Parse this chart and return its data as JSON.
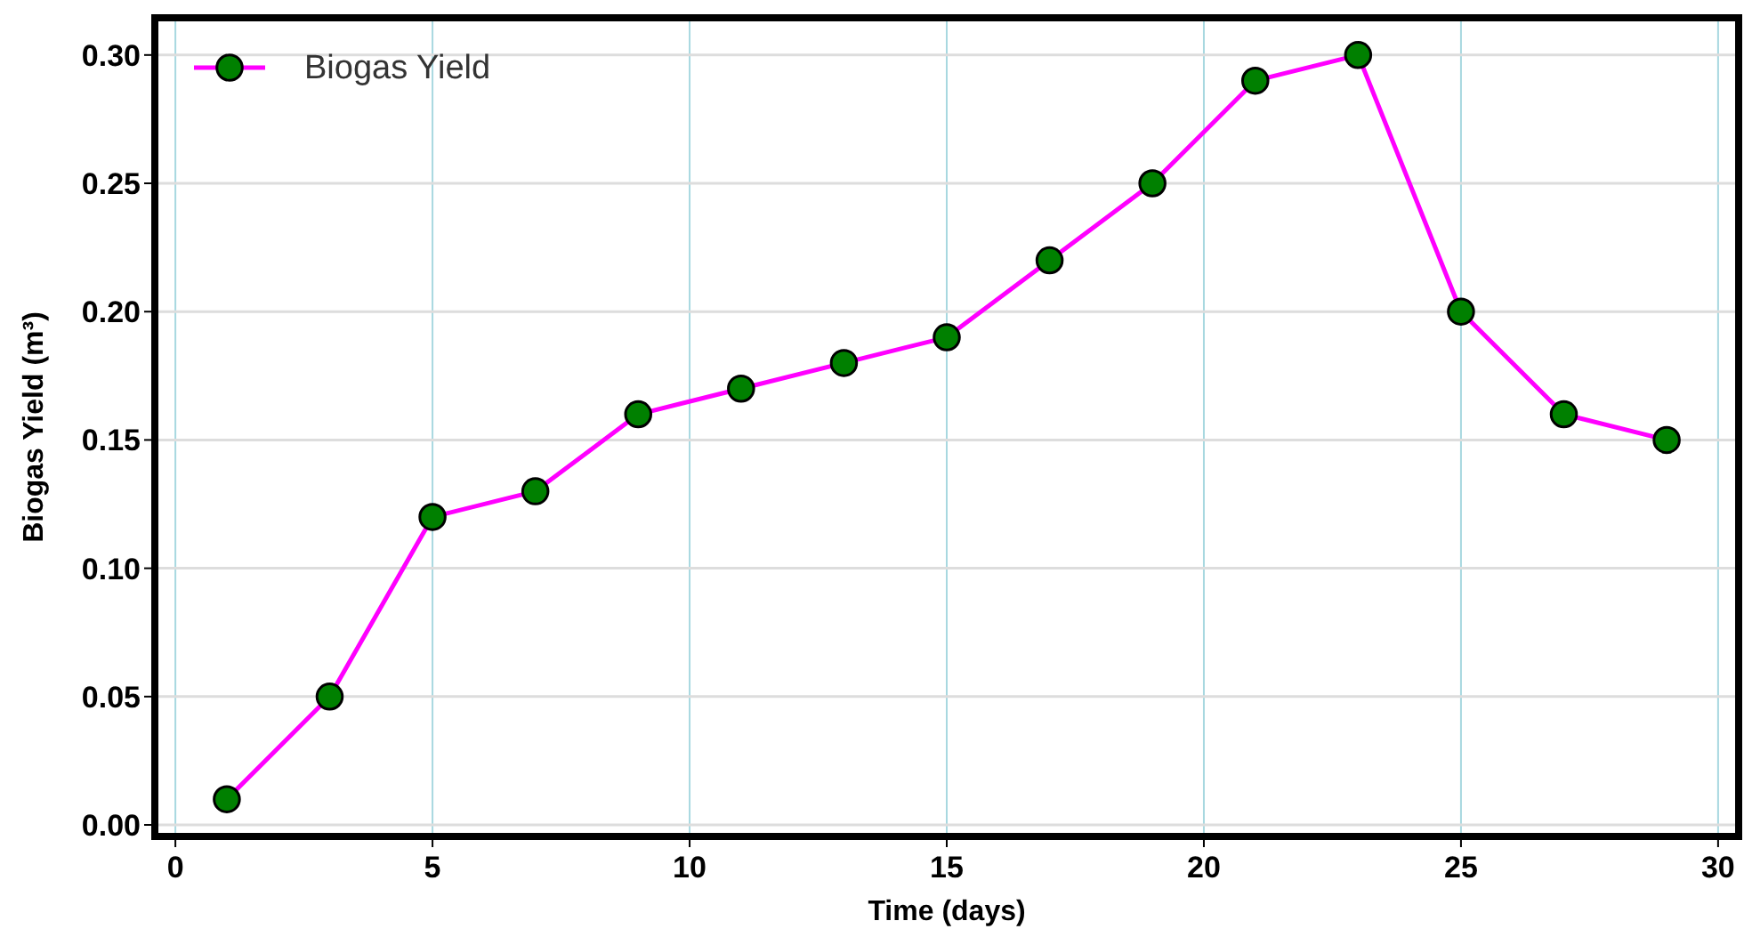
{
  "chart_data": {
    "type": "line",
    "xlabel": "Time (days)",
    "ylabel": "Biogas Yield (m³)",
    "x": [
      1,
      3,
      5,
      7,
      9,
      11,
      13,
      15,
      17,
      19,
      21,
      23,
      25,
      27,
      29
    ],
    "series": [
      {
        "name": "Biogas Yield",
        "color": "#ff00ff",
        "values": [
          0.01,
          0.05,
          0.12,
          0.13,
          0.16,
          0.17,
          0.18,
          0.19,
          0.22,
          0.25,
          0.29,
          0.3,
          0.2,
          0.16,
          0.15
        ]
      }
    ],
    "xlim": [
      -0.4,
      30.4
    ],
    "ylim": [
      -0.0045,
      0.3145
    ],
    "xticks": [
      0,
      5,
      10,
      15,
      20,
      25,
      30
    ],
    "yticks": [
      {
        "value": 0,
        "label": "0.00"
      },
      {
        "value": 0.05,
        "label": "0.05"
      },
      {
        "value": 0.1,
        "label": "0.10"
      },
      {
        "value": 0.15,
        "label": "0.15"
      },
      {
        "value": 0.2,
        "label": "0.20"
      },
      {
        "value": 0.25,
        "label": "0.25"
      },
      {
        "value": 0.3,
        "label": "0.30"
      }
    ],
    "grid": true,
    "legend": "top left",
    "marker": "circle",
    "line_style": "solid"
  }
}
